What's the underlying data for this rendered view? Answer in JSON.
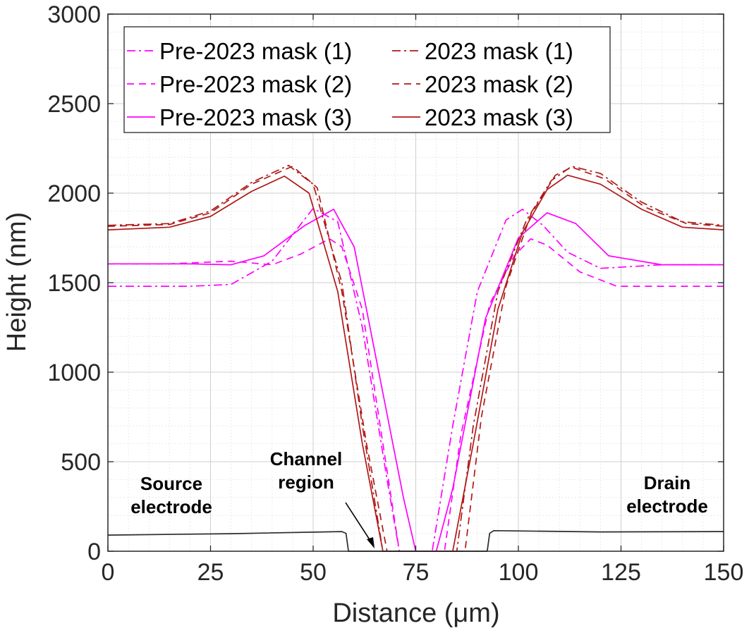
{
  "chart_data": {
    "type": "line",
    "xlabel": "Distance (μm)",
    "ylabel": "Height (nm)",
    "xlim": [
      0,
      150
    ],
    "ylim": [
      0,
      3000
    ],
    "xticks": [
      "0",
      "25",
      "50",
      "75",
      "100",
      "125",
      "150"
    ],
    "yticks": [
      "0",
      "500",
      "1000",
      "1500",
      "2000",
      "2500",
      "3000"
    ],
    "grid": true,
    "minor_grid": true,
    "legend_position": "top",
    "colors": {
      "pre": "#ff00ff",
      "post": "#b01818",
      "electrode": "#2b2b2b"
    },
    "series": [
      {
        "name": "Pre-2023 mask (1)",
        "color": "#ff00ff",
        "dash": "dashdot",
        "points": [
          [
            0,
            1480
          ],
          [
            20,
            1480
          ],
          [
            30,
            1490
          ],
          [
            40,
            1620
          ],
          [
            50,
            1915
          ],
          [
            56,
            1840
          ],
          [
            62,
            1250
          ],
          [
            68,
            400
          ],
          [
            71,
            0
          ],
          [
            79,
            0
          ],
          [
            84,
            700
          ],
          [
            90,
            1450
          ],
          [
            97,
            1850
          ],
          [
            101,
            1910
          ],
          [
            106,
            1820
          ],
          [
            112,
            1670
          ],
          [
            120,
            1580
          ],
          [
            135,
            1600
          ],
          [
            150,
            1600
          ]
        ]
      },
      {
        "name": "Pre-2023 mask (2)",
        "color": "#ff00ff",
        "dash": "dashed",
        "points": [
          [
            0,
            1605
          ],
          [
            15,
            1605
          ],
          [
            30,
            1620
          ],
          [
            40,
            1600
          ],
          [
            47,
            1660
          ],
          [
            54,
            1745
          ],
          [
            57,
            1700
          ],
          [
            62,
            1350
          ],
          [
            68,
            450
          ],
          [
            71,
            0
          ],
          [
            82,
            0
          ],
          [
            86,
            650
          ],
          [
            93,
            1380
          ],
          [
            99,
            1650
          ],
          [
            103,
            1745
          ],
          [
            107,
            1710
          ],
          [
            115,
            1560
          ],
          [
            124,
            1480
          ],
          [
            135,
            1480
          ],
          [
            150,
            1480
          ]
        ]
      },
      {
        "name": "Pre-2023 mask (3)",
        "color": "#ff00ff",
        "dash": "solid",
        "points": [
          [
            0,
            1605
          ],
          [
            20,
            1605
          ],
          [
            30,
            1600
          ],
          [
            38,
            1650
          ],
          [
            48,
            1820
          ],
          [
            55,
            1910
          ],
          [
            60,
            1700
          ],
          [
            66,
            1000
          ],
          [
            72,
            300
          ],
          [
            75,
            0
          ],
          [
            80,
            0
          ],
          [
            84,
            350
          ],
          [
            92,
            1300
          ],
          [
            100,
            1750
          ],
          [
            107,
            1890
          ],
          [
            114,
            1830
          ],
          [
            122,
            1650
          ],
          [
            135,
            1600
          ],
          [
            150,
            1600
          ]
        ]
      },
      {
        "name": "2023 mask (1)",
        "color": "#b01818",
        "dash": "dashdot",
        "points": [
          [
            0,
            1820
          ],
          [
            15,
            1830
          ],
          [
            25,
            1900
          ],
          [
            35,
            2060
          ],
          [
            44,
            2155
          ],
          [
            50,
            2050
          ],
          [
            57,
            1500
          ],
          [
            62,
            700
          ],
          [
            67,
            0
          ],
          [
            85,
            0
          ],
          [
            89,
            700
          ],
          [
            95,
            1450
          ],
          [
            102,
            1850
          ],
          [
            108,
            2070
          ],
          [
            113,
            2150
          ],
          [
            120,
            2110
          ],
          [
            130,
            1950
          ],
          [
            140,
            1840
          ],
          [
            150,
            1820
          ]
        ]
      },
      {
        "name": "2023 mask (2)",
        "color": "#b01818",
        "dash": "dashed",
        "points": [
          [
            0,
            1815
          ],
          [
            15,
            1825
          ],
          [
            25,
            1890
          ],
          [
            35,
            2050
          ],
          [
            45,
            2150
          ],
          [
            51,
            2030
          ],
          [
            57,
            1450
          ],
          [
            63,
            600
          ],
          [
            68,
            0
          ],
          [
            87,
            0
          ],
          [
            91,
            750
          ],
          [
            97,
            1480
          ],
          [
            103,
            1880
          ],
          [
            109,
            2100
          ],
          [
            113,
            2145
          ],
          [
            121,
            2080
          ],
          [
            131,
            1920
          ],
          [
            141,
            1830
          ],
          [
            150,
            1815
          ]
        ]
      },
      {
        "name": "2023 mask (3)",
        "color": "#b01818",
        "dash": "solid",
        "points": [
          [
            0,
            1795
          ],
          [
            15,
            1810
          ],
          [
            25,
            1870
          ],
          [
            35,
            2010
          ],
          [
            43,
            2095
          ],
          [
            49,
            2000
          ],
          [
            56,
            1450
          ],
          [
            62,
            600
          ],
          [
            67,
            0
          ],
          [
            84,
            0
          ],
          [
            89,
            600
          ],
          [
            95,
            1350
          ],
          [
            101,
            1780
          ],
          [
            107,
            2020
          ],
          [
            112,
            2100
          ],
          [
            120,
            2050
          ],
          [
            130,
            1910
          ],
          [
            140,
            1810
          ],
          [
            150,
            1795
          ]
        ]
      },
      {
        "name": "",
        "color": "#2b2b2b",
        "dash": "solid",
        "points": [
          [
            0,
            90
          ],
          [
            30,
            98
          ],
          [
            57,
            110
          ],
          [
            58,
            100
          ],
          [
            58.6,
            0
          ],
          [
            92.4,
            0
          ],
          [
            93,
            100
          ],
          [
            94,
            115
          ],
          [
            120,
            108
          ],
          [
            150,
            110
          ]
        ]
      }
    ],
    "annotations": [
      {
        "lines": [
          "Source",
          "electrode"
        ]
      },
      {
        "lines": [
          "Channel",
          "region"
        ]
      },
      {
        "lines": [
          "Drain",
          "electrode"
        ]
      }
    ]
  }
}
